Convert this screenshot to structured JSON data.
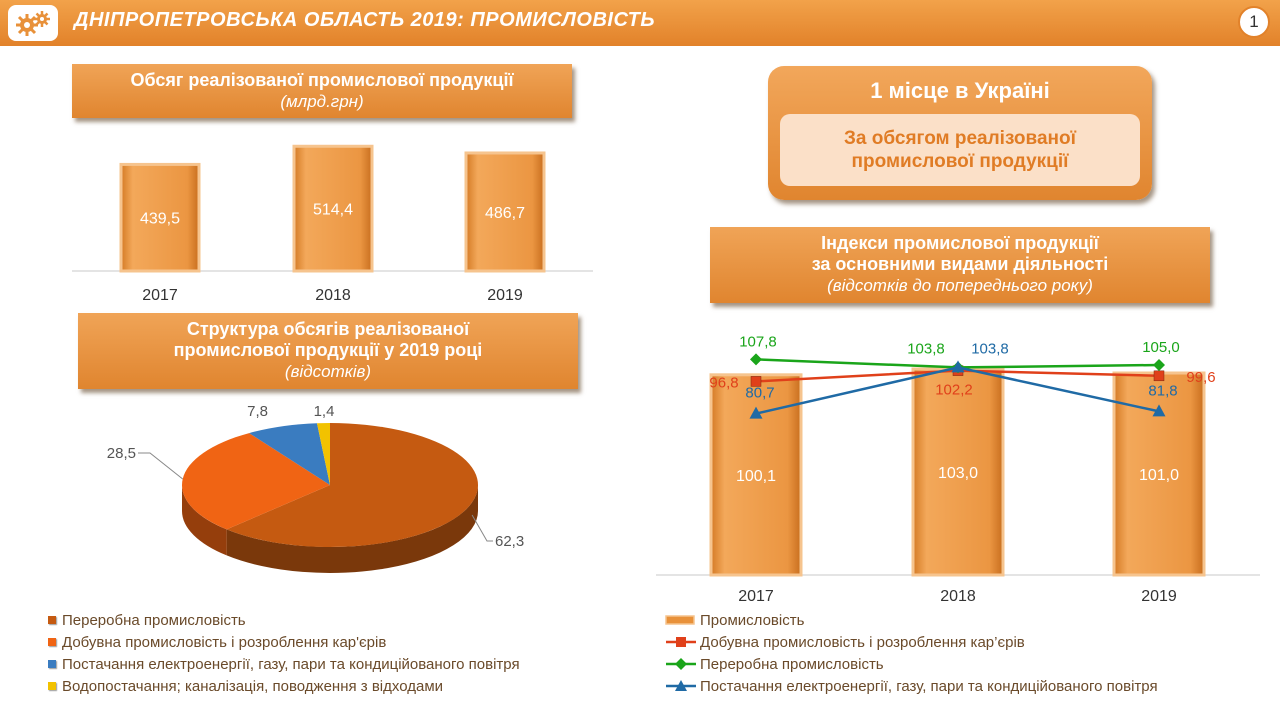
{
  "header": {
    "title": "ДНІПРОПЕТРОВСЬКА ОБЛАСТЬ 2019: ПРОМИСЛОВІСТЬ",
    "page_number": "1",
    "logo_icon": "gears-icon"
  },
  "ranking": {
    "place": "1 місце в Україні",
    "criterion": "За обсягом реалізованої промислової продукції"
  },
  "colors": {
    "accent": "#e8913a",
    "bar": "#e8913a",
    "pie_processing": "#c55a11",
    "pie_mining": "#f06414",
    "pie_energy": "#3a7cc0",
    "pie_water": "#f2c200",
    "line_mining": "#e0401a",
    "line_processing": "#1aa51a",
    "line_energy": "#1f6aa5"
  },
  "chart_data": [
    {
      "type": "bar",
      "title": "Обсяг реалізованої промислової продукції",
      "subtitle": "(млрд.грн)",
      "categories": [
        "2017",
        "2018",
        "2019"
      ],
      "values": [
        439.5,
        514.4,
        486.7
      ],
      "value_labels": [
        "439,5",
        "514,4",
        "486,7"
      ]
    },
    {
      "type": "pie",
      "title": "Структура обсягів реалізованої промислової продукції у 2019 році",
      "subtitle": "(відсотків)",
      "slices": [
        {
          "name": "Переробна промисловість",
          "value": 62.3,
          "label": "62,3",
          "color": "#c55a11"
        },
        {
          "name": "Добувна промисловість і розроблення кар'єрів",
          "value": 28.5,
          "label": "28,5",
          "color": "#f06414"
        },
        {
          "name": "Постачання електроенергії, газу, пари та кондиційованого повітря",
          "value": 7.8,
          "label": "7,8",
          "color": "#3a7cc0"
        },
        {
          "name": "Водопостачання; каналізація, поводження з відходами",
          "value": 1.4,
          "label": "1,4",
          "color": "#f2c200"
        }
      ]
    },
    {
      "type": "bar",
      "title": "Індекси промислової продукції за основними видами діяльності",
      "subtitle": "(відсотків до попереднього року)",
      "categories": [
        "2017",
        "2018",
        "2019"
      ],
      "series": [
        {
          "name": "Промисловість",
          "kind": "bar",
          "values": [
            100.1,
            103.0,
            101.0
          ],
          "labels": [
            "100,1",
            "103,0",
            "101,0"
          ]
        },
        {
          "name": "Добувна промисловість і розроблення кар’єрів",
          "kind": "line",
          "values": [
            96.8,
            102.2,
            99.6
          ],
          "labels": [
            "96,8",
            "102,2",
            "99,6"
          ],
          "color": "#e0401a"
        },
        {
          "name": "Переробна промисловість",
          "kind": "line",
          "values": [
            107.8,
            103.8,
            105.0
          ],
          "labels": [
            "107,8",
            "103,8",
            "105,0"
          ],
          "color": "#1aa51a"
        },
        {
          "name": "Постачання електроенергії, газу, пари та кондиційованого повітря",
          "kind": "line",
          "values": [
            80.7,
            103.8,
            81.8
          ],
          "labels": [
            "80,7",
            "103,8",
            "81,8"
          ],
          "color": "#1f6aa5"
        }
      ]
    }
  ]
}
